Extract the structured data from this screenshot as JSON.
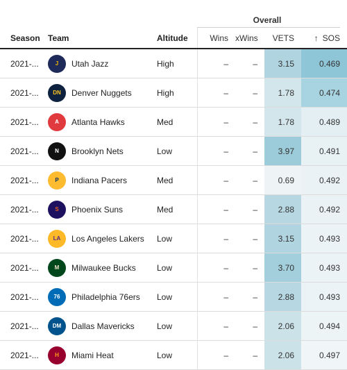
{
  "header": {
    "group_label": "Overall",
    "season": "Season",
    "team": "Team",
    "altitude": "Altitude",
    "wins": "Wins",
    "xwins": "xWins",
    "vets": "VETS",
    "sos": "SOS",
    "sort_icon": "↑"
  },
  "colors": {
    "vets_scale": [
      "#eef3f5",
      "#9ccbd9"
    ],
    "sos_scale": [
      "#f0f5f7",
      "#8ec6d8"
    ]
  },
  "rows": [
    {
      "season": "2021-...",
      "team": "Utah Jazz",
      "logo": "jazz-logo",
      "logo_text": "J",
      "logo_bg": "#1d2a5a",
      "logo_fg": "#f5b800",
      "altitude": "High",
      "wins": "–",
      "xwins": "–",
      "vets": "3.15",
      "sos": "0.469",
      "vets_v": 3.15,
      "sos_v": 0.469
    },
    {
      "season": "2021-...",
      "team": "Denver Nuggets",
      "logo": "nuggets-logo",
      "logo_text": "DN",
      "logo_bg": "#0e2240",
      "logo_fg": "#fec524",
      "altitude": "High",
      "wins": "–",
      "xwins": "–",
      "vets": "1.78",
      "sos": "0.474",
      "vets_v": 1.78,
      "sos_v": 0.474
    },
    {
      "season": "2021-...",
      "team": "Atlanta Hawks",
      "logo": "hawks-logo",
      "logo_text": "A",
      "logo_bg": "#e03a3e",
      "logo_fg": "#ffffff",
      "altitude": "Med",
      "wins": "–",
      "xwins": "–",
      "vets": "1.78",
      "sos": "0.489",
      "vets_v": 1.78,
      "sos_v": 0.489
    },
    {
      "season": "2021-...",
      "team": "Brooklyn Nets",
      "logo": "nets-logo",
      "logo_text": "N",
      "logo_bg": "#111111",
      "logo_fg": "#ffffff",
      "altitude": "Low",
      "wins": "–",
      "xwins": "–",
      "vets": "3.97",
      "sos": "0.491",
      "vets_v": 3.97,
      "sos_v": 0.491
    },
    {
      "season": "2021-...",
      "team": "Indiana Pacers",
      "logo": "pacers-logo",
      "logo_text": "P",
      "logo_bg": "#fdbb30",
      "logo_fg": "#002d62",
      "altitude": "Med",
      "wins": "–",
      "xwins": "–",
      "vets": "0.69",
      "sos": "0.492",
      "vets_v": 0.69,
      "sos_v": 0.492
    },
    {
      "season": "2021-...",
      "team": "Phoenix Suns",
      "logo": "suns-logo",
      "logo_text": "S",
      "logo_bg": "#1d1160",
      "logo_fg": "#e56020",
      "altitude": "Med",
      "wins": "–",
      "xwins": "–",
      "vets": "2.88",
      "sos": "0.492",
      "vets_v": 2.88,
      "sos_v": 0.492
    },
    {
      "season": "2021-...",
      "team": "Los Angeles Lakers",
      "logo": "lakers-logo",
      "logo_text": "LA",
      "logo_bg": "#fdb927",
      "logo_fg": "#552583",
      "altitude": "Low",
      "wins": "–",
      "xwins": "–",
      "vets": "3.15",
      "sos": "0.493",
      "vets_v": 3.15,
      "sos_v": 0.493
    },
    {
      "season": "2021-...",
      "team": "Milwaukee Bucks",
      "logo": "bucks-logo",
      "logo_text": "M",
      "logo_bg": "#00471b",
      "logo_fg": "#eee1c6",
      "altitude": "Low",
      "wins": "–",
      "xwins": "–",
      "vets": "3.70",
      "sos": "0.493",
      "vets_v": 3.7,
      "sos_v": 0.493
    },
    {
      "season": "2021-...",
      "team": "Philadelphia 76ers",
      "logo": "sixers-logo",
      "logo_text": "76",
      "logo_bg": "#006bb6",
      "logo_fg": "#ffffff",
      "altitude": "Low",
      "wins": "–",
      "xwins": "–",
      "vets": "2.88",
      "sos": "0.493",
      "vets_v": 2.88,
      "sos_v": 0.493
    },
    {
      "season": "2021-...",
      "team": "Dallas Mavericks",
      "logo": "mavericks-logo",
      "logo_text": "DM",
      "logo_bg": "#00538c",
      "logo_fg": "#ffffff",
      "altitude": "Low",
      "wins": "–",
      "xwins": "–",
      "vets": "2.06",
      "sos": "0.494",
      "vets_v": 2.06,
      "sos_v": 0.494
    },
    {
      "season": "2021-...",
      "team": "Miami Heat",
      "logo": "heat-logo",
      "logo_text": "H",
      "logo_bg": "#98002e",
      "logo_fg": "#f9a01b",
      "altitude": "Low",
      "wins": "–",
      "xwins": "–",
      "vets": "2.06",
      "sos": "0.497",
      "vets_v": 2.06,
      "sos_v": 0.497
    }
  ]
}
